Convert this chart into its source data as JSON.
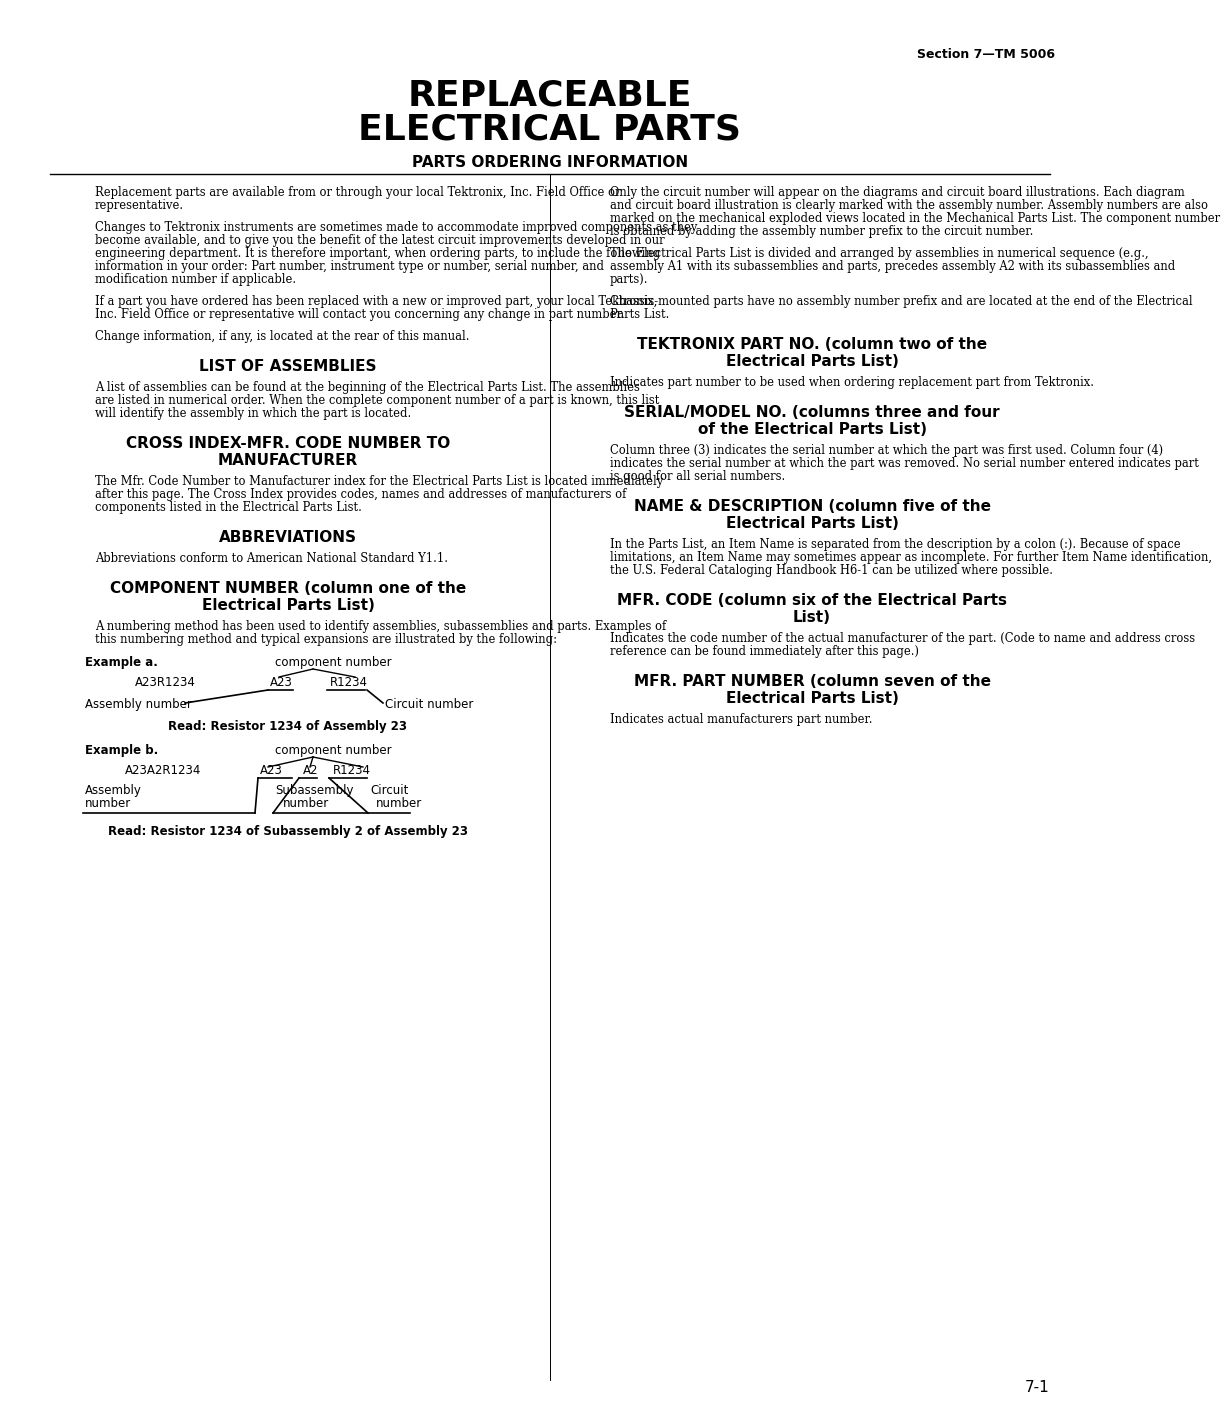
{
  "bg": "#ffffff",
  "page_header": "Section 7—TM 5006",
  "title1": "REPLACEABLE",
  "title2": "ELECTRICAL PARTS",
  "subtitle": "PARTS ORDERING INFORMATION",
  "page_number": "7-1",
  "lp1": "Replacement parts are available from or through your local Tektronix, Inc. Field Office or representative.",
  "lp2": "Changes to Tektronix instruments are sometimes made to accommodate improved components as they become available, and to give you the benefit of the latest circuit improvements developed in our engineering department. It is therefore important, when ordering parts, to include the following information in your order: Part number, instrument type or number, serial number, and modification number if applicable.",
  "lp3": "If a part you have ordered has been replaced with a new or improved part, your local Tektronix, Inc. Field Office or representative will contact you concerning any change in part number.",
  "lp4": "Change information, if any, is located at the rear of this manual.",
  "h_assemblies": "LIST OF ASSEMBLIES",
  "p_assemblies": "A list of assemblies can be found at the beginning of the Electrical Parts List. The assemblies are listed in numerical order. When the complete component number of a part is known, this list will identify the assembly in which the part is located.",
  "h_cross1": "CROSS INDEX-MFR. CODE NUMBER TO",
  "h_cross2": "MANUFACTURER",
  "p_cross": "The Mfr. Code Number to Manufacturer index for the Electrical Parts List is located immediately after this page. The Cross Index provides codes, names and addresses of manufacturers of components listed in the Electrical Parts List.",
  "h_abbrev": "ABBREVIATIONS",
  "p_abbrev": "Abbreviations conform to American National Standard Y1.1.",
  "h_comp1": "COMPONENT NUMBER (column one of the",
  "h_comp2": "Electrical Parts List)",
  "p_comp": "A numbering method has been used to identify assemblies, subassemblies and parts. Examples of this numbering method and typical expansions are illustrated by the following:",
  "rp1": "Only the circuit number will appear on the diagrams and circuit board illustrations. Each diagram and circuit board illustration is clearly marked with the assembly number. Assembly numbers are also marked on the mechanical exploded views located in the Mechanical Parts List. The component number is obtained by adding the assembly number prefix to the circuit number.",
  "rp2": "The Electrical Parts List is divided and arranged by assemblies in numerical sequence (e.g., assembly A1 with its subassemblies and parts, precedes assembly A2 with its subassemblies and parts).",
  "rp3": "Chassis-mounted parts have no assembly number prefix and are located at the end of the Electrical Parts List.",
  "h_tek1": "TEKTRONIX PART NO. (column two of the",
  "h_tek2": "Electrical Parts List)",
  "p_tek": "Indicates part number to be used when ordering replacement part from Tektronix.",
  "h_ser1": "SERIAL/MODEL NO. (columns three and four",
  "h_ser2": "of the Electrical Parts List)",
  "p_ser": "Column three (3) indicates the serial number at which the part was first used. Column four (4) indicates the serial number at which the part was removed. No serial number entered indicates part is good for all serial numbers.",
  "h_name1": "NAME & DESCRIPTION (column five of the",
  "h_name2": "Electrical Parts List)",
  "p_name": "In the Parts List, an Item Name is separated from the description by a colon (:). Because of space limitations, an Item Name may sometimes appear as incomplete. For further Item Name identification, the U.S. Federal Cataloging Handbook H6-1 can be utilized where possible.",
  "h_mfr1": "MFR. CODE (column six of the Electrical Parts",
  "h_mfr2": "List)",
  "p_mfr": "Indicates the code number of the actual manufacturer of the part. (Code to name and address cross reference can be found immediately after this page.)",
  "h_mfrp1": "MFR. PART NUMBER (column seven of the",
  "h_mfrp2": "Electrical Parts List)",
  "p_mfrp": "Indicates actual manufacturers part number."
}
